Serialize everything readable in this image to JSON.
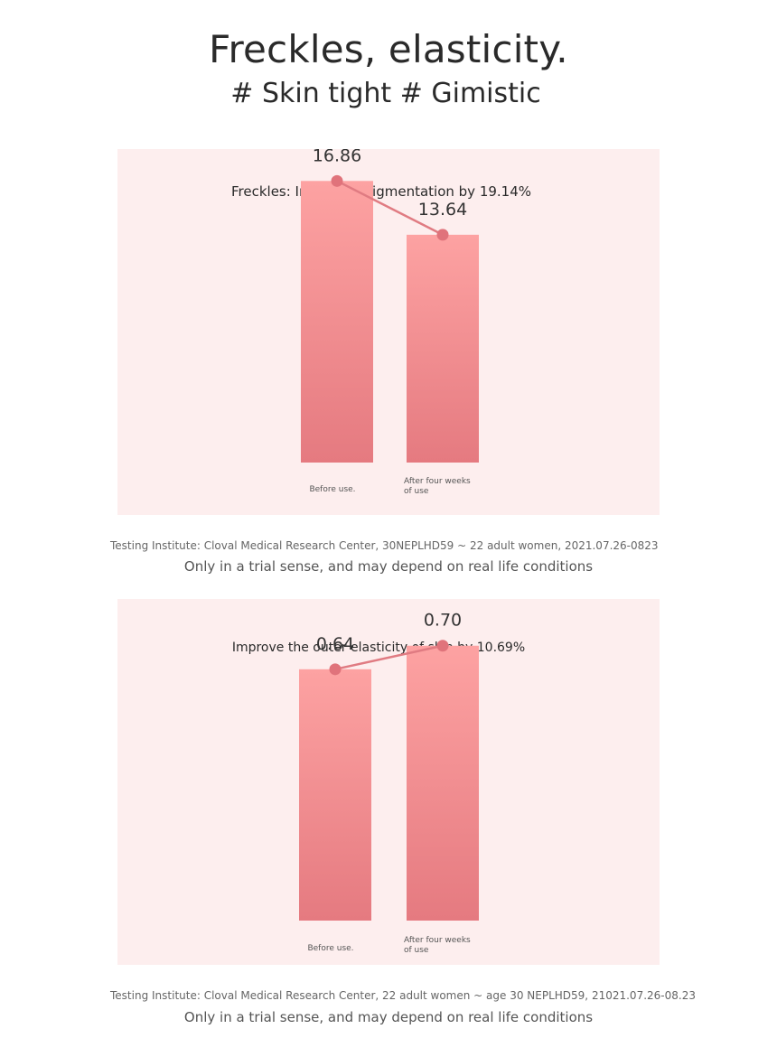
{
  "header": {
    "title": "Freckles, elasticity.",
    "subtitle": "# Skin tight # Gimistic"
  },
  "colors": {
    "panel_bg": "#fdeeee",
    "bar_top": "#fda2a2",
    "bar_bottom": "#e57a80",
    "line": "#e07b82",
    "point": "#e0737b"
  },
  "chart_data": [
    {
      "type": "bar",
      "title": "Freckles: Improved pigmentation by 19.14%",
      "categories": [
        "Before use.",
        "After four weeks of use"
      ],
      "category_lines": [
        [
          "Before use."
        ],
        [
          "After four weeks",
          "of use"
        ]
      ],
      "values": [
        16.86,
        13.64
      ],
      "value_labels": [
        "16.86",
        "13.64"
      ],
      "ylim": [
        0,
        18.5
      ],
      "overlay_line": true,
      "grid": false,
      "legend": "none"
    },
    {
      "type": "bar",
      "title": "Improve the outer elasticity of skin by 10.69%",
      "categories": [
        "Before use.",
        "After four weeks of use"
      ],
      "category_lines": [
        [
          "Before use."
        ],
        [
          "After four weeks",
          "of use"
        ]
      ],
      "values": [
        0.64,
        0.7
      ],
      "value_labels": [
        "0.64",
        "0.70"
      ],
      "ylim": [
        0,
        0.75
      ],
      "overlay_line": true,
      "grid": false,
      "legend": "none"
    }
  ],
  "footnotes": [
    {
      "source": "Testing Institute: Cloval Medical Research Center, 30NEPLHD59 ~ 22 adult women, 2021.07.26-0823",
      "disclaimer": "Only in a trial sense, and may depend on real life conditions"
    },
    {
      "source": "Testing Institute: Cloval Medical Research Center, 22 adult women ~ age 30 NEPLHD59, 21021.07.26-08.23",
      "disclaimer": "Only in a trial sense, and may depend on real life conditions"
    }
  ]
}
